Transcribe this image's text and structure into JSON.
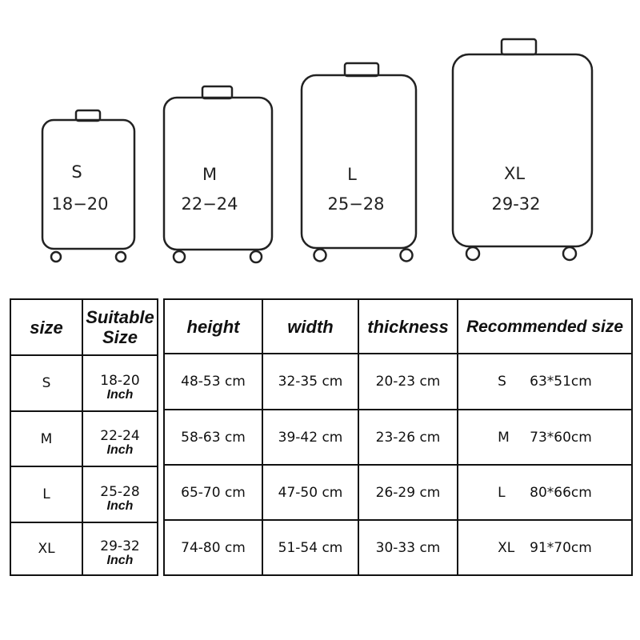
{
  "suitcases": [
    {
      "size": "S",
      "range": "18−20"
    },
    {
      "size": "M",
      "range": "22−24"
    },
    {
      "size": "L",
      "range": "25−28"
    },
    {
      "size": "XL",
      "range": "29-32"
    }
  ],
  "left_table": {
    "headers": [
      "size",
      "Suitable",
      "Size"
    ],
    "unit": "Inch",
    "rows": [
      {
        "size": "S",
        "suitable": "18-20"
      },
      {
        "size": "M",
        "suitable": "22-24"
      },
      {
        "size": "L",
        "suitable": "25-28"
      },
      {
        "size": "XL",
        "suitable": "29-32"
      }
    ]
  },
  "right_table": {
    "headers": [
      "height",
      "width",
      "thickness",
      "Recommended size"
    ],
    "rows": [
      {
        "height": "48-53 cm",
        "width": "32-35 cm",
        "thickness": "20-23 cm",
        "rec_size": "S",
        "rec_dim": "63*51cm"
      },
      {
        "height": "58-63 cm",
        "width": "39-42 cm",
        "thickness": "23-26 cm",
        "rec_size": "M",
        "rec_dim": "73*60cm"
      },
      {
        "height": "65-70 cm",
        "width": "47-50 cm",
        "thickness": "26-29 cm",
        "rec_size": "L",
        "rec_dim": "80*66cm"
      },
      {
        "height": "74-80 cm",
        "width": "51-54 cm",
        "thickness": "30-33 cm",
        "rec_size": "XL",
        "rec_dim": "91*70cm"
      }
    ]
  }
}
